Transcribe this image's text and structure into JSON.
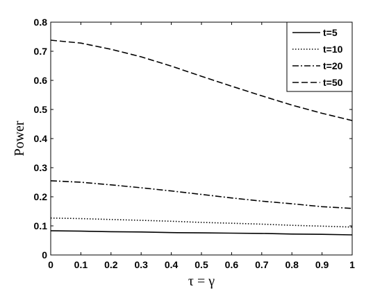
{
  "chart_data": {
    "type": "line",
    "title": "",
    "xlabel": "τ = γ",
    "ylabel": "Power",
    "xlim": [
      0,
      1
    ],
    "ylim": [
      0,
      0.8
    ],
    "xticks": [
      "0",
      "0.1",
      "0.2",
      "0.3",
      "0.4",
      "0.5",
      "0.6",
      "0.7",
      "0.8",
      "0.9",
      "1"
    ],
    "yticks": [
      "0",
      "0.1",
      "0.2",
      "0.3",
      "0.4",
      "0.5",
      "0.6",
      "0.7",
      "0.8"
    ],
    "grid": false,
    "legend_position": "top-right",
    "x": [
      0,
      0.1,
      0.2,
      0.3,
      0.4,
      0.5,
      0.6,
      0.7,
      0.8,
      0.9,
      1
    ],
    "series": [
      {
        "name": "t=5",
        "style": "solid",
        "values": [
          0.083,
          0.082,
          0.08,
          0.079,
          0.077,
          0.076,
          0.075,
          0.074,
          0.072,
          0.071,
          0.069
        ]
      },
      {
        "name": "t=10",
        "style": "dotted",
        "values": [
          0.127,
          0.125,
          0.122,
          0.119,
          0.116,
          0.112,
          0.109,
          0.106,
          0.102,
          0.099,
          0.096
        ]
      },
      {
        "name": "t=20",
        "style": "dashdot",
        "values": [
          0.255,
          0.25,
          0.241,
          0.231,
          0.22,
          0.208,
          0.196,
          0.185,
          0.176,
          0.166,
          0.16
        ]
      },
      {
        "name": "t=50",
        "style": "dashed",
        "values": [
          0.738,
          0.728,
          0.707,
          0.681,
          0.649,
          0.614,
          0.58,
          0.547,
          0.515,
          0.487,
          0.462
        ]
      }
    ]
  }
}
